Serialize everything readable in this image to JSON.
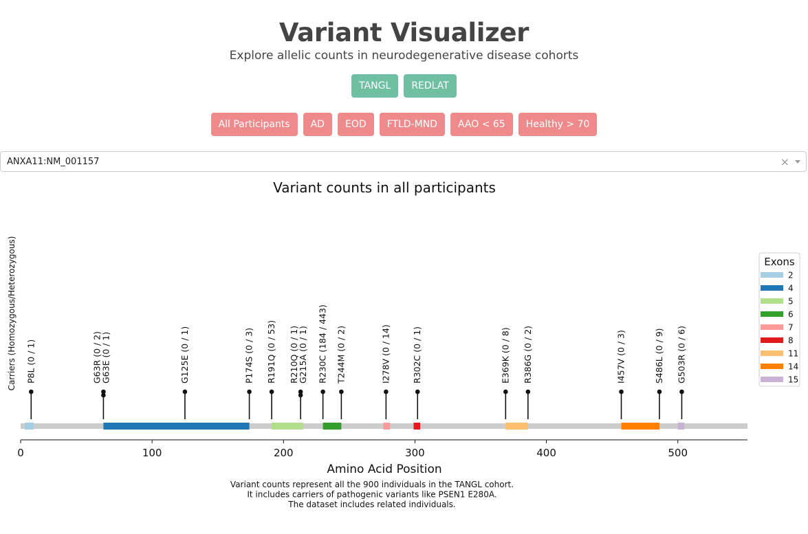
{
  "header": {
    "title": "Variant Visualizer",
    "subtitle": "Explore allelic counts in neurodegenerative disease cohorts"
  },
  "cohort_buttons": [
    "TANGL",
    "REDLAT"
  ],
  "group_buttons": [
    "All Participants",
    "AD",
    "EOD",
    "FTLD-MND",
    "AAO < 65",
    "Healthy > 70"
  ],
  "colors": {
    "cohort_button": "#6fbfa3",
    "group_button": "#ef8a8c"
  },
  "gene_select": {
    "value": "ANXA11:NM_001157",
    "clear_icon": "close-icon",
    "arrow_icon": "chevron-down-icon"
  },
  "chart_data": {
    "type": "lollipop",
    "title": "Variant counts in all participants",
    "xlabel": "Amino Acid Position",
    "ylabel": "Carriers (Homozygous/Heterozygous)",
    "xlim": [
      0,
      553
    ],
    "xticks": [
      0,
      100,
      200,
      300,
      400,
      500
    ],
    "legend_title": "Exons",
    "legend_position": "right",
    "backbone_color": "#cccccc",
    "exons": [
      {
        "name": "2",
        "color": "#a6cee3",
        "start": 3,
        "end": 10
      },
      {
        "name": "4",
        "color": "#1f78b4",
        "start": 63,
        "end": 174
      },
      {
        "name": "5",
        "color": "#b2df8a",
        "start": 191,
        "end": 215
      },
      {
        "name": "6",
        "color": "#33a02c",
        "start": 230,
        "end": 244
      },
      {
        "name": "7",
        "color": "#fb9a99",
        "start": 276,
        "end": 281
      },
      {
        "name": "8",
        "color": "#e31a1c",
        "start": 299,
        "end": 304
      },
      {
        "name": "11",
        "color": "#fdbf6f",
        "start": 369,
        "end": 386
      },
      {
        "name": "14",
        "color": "#ff7f00",
        "start": 457,
        "end": 486
      },
      {
        "name": "15",
        "color": "#cab2d6",
        "start": 500,
        "end": 505
      }
    ],
    "variants": [
      {
        "position": 8,
        "labels": [
          "P8L (0 / 1)"
        ]
      },
      {
        "position": 63,
        "labels": [
          "G63R (0 / 2)",
          "G63E (0 / 1)"
        ]
      },
      {
        "position": 125,
        "labels": [
          "G125E (0 / 1)"
        ]
      },
      {
        "position": 174,
        "labels": [
          "P174S (0 / 3)"
        ]
      },
      {
        "position": 191,
        "labels": [
          "R191Q (0 / 53)"
        ]
      },
      {
        "position": 213,
        "labels": [
          "R210Q (0 / 1)",
          "G215A (0 / 1)"
        ]
      },
      {
        "position": 230,
        "labels": [
          "R230C (184 / 443)"
        ]
      },
      {
        "position": 244,
        "labels": [
          "T244M (0 / 2)"
        ]
      },
      {
        "position": 278,
        "labels": [
          "I278V (0 / 14)"
        ]
      },
      {
        "position": 302,
        "labels": [
          "R302C (0 / 1)"
        ]
      },
      {
        "position": 369,
        "labels": [
          "E369K (0 / 8)"
        ]
      },
      {
        "position": 386,
        "labels": [
          "R386G (0 / 2)"
        ]
      },
      {
        "position": 457,
        "labels": [
          "I457V (0 / 3)"
        ]
      },
      {
        "position": 486,
        "labels": [
          "S486L (0 / 9)"
        ]
      },
      {
        "position": 503,
        "labels": [
          "G503R (0 / 6)"
        ]
      }
    ],
    "caption": [
      "Variant counts represent all the 900 individuals in the TANGL cohort.",
      "It includes carriers of pathogenic variants like PSEN1 E280A.",
      "The dataset includes related individuals."
    ]
  }
}
